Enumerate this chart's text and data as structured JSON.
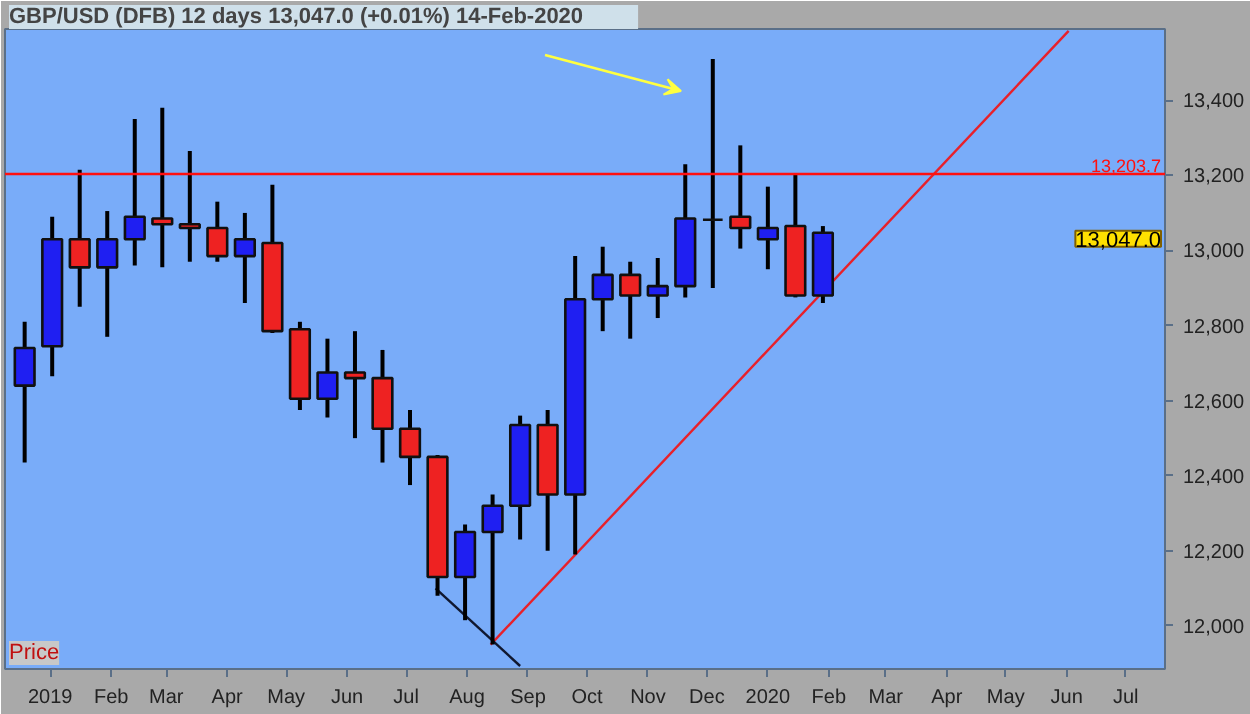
{
  "chart_data": {
    "type": "candlestick",
    "title": "GBP/USD (DFB)    12 days    13,047.0 (+0.01%)    14-Feb-2020",
    "x": [
      "2018-12-19",
      "2019-01-02",
      "2019-01-16",
      "2019-01-30",
      "2019-02-13",
      "2019-02-27",
      "2019-03-13",
      "2019-03-27",
      "2019-04-10",
      "2019-04-24",
      "2019-05-08",
      "2019-05-22",
      "2019-06-05",
      "2019-06-19",
      "2019-07-03",
      "2019-07-17",
      "2019-07-31",
      "2019-08-14",
      "2019-08-28",
      "2019-09-11",
      "2019-09-25",
      "2019-10-09",
      "2019-10-23",
      "2019-11-06",
      "2019-11-20",
      "2019-12-04",
      "2019-12-18",
      "2020-01-01",
      "2020-01-15",
      "2020-01-29"
    ],
    "ohlc": [
      [
        12640,
        12810,
        12435,
        12740
      ],
      [
        12745,
        13090,
        12665,
        13030
      ],
      [
        13030,
        13215,
        12850,
        12955
      ],
      [
        12955,
        13105,
        12770,
        13030
      ],
      [
        13030,
        13350,
        12960,
        13090
      ],
      [
        13085,
        13380,
        12955,
        13070
      ],
      [
        13070,
        13265,
        12970,
        13060
      ],
      [
        13060,
        13130,
        12970,
        12985
      ],
      [
        12985,
        13100,
        12860,
        13030
      ],
      [
        13020,
        13175,
        12780,
        12785
      ],
      [
        12790,
        12810,
        12575,
        12605
      ],
      [
        12605,
        12765,
        12555,
        12675
      ],
      [
        12675,
        12785,
        12500,
        12660
      ],
      [
        12660,
        12735,
        12435,
        12525
      ],
      [
        12525,
        12575,
        12375,
        12450
      ],
      [
        12450,
        12455,
        12080,
        12130
      ],
      [
        12130,
        12270,
        12015,
        12250
      ],
      [
        12250,
        12350,
        11950,
        12320
      ],
      [
        12320,
        12560,
        12230,
        12535
      ],
      [
        12535,
        12575,
        12200,
        12350
      ],
      [
        12350,
        12985,
        12190,
        12870
      ],
      [
        12870,
        13010,
        12785,
        12935
      ],
      [
        12935,
        12970,
        12765,
        12880
      ],
      [
        12880,
        12980,
        12820,
        12905
      ],
      [
        12905,
        13230,
        12875,
        13085
      ],
      [
        13082,
        13510,
        12900,
        13082
      ],
      [
        13090,
        13280,
        13005,
        13060
      ],
      [
        13030,
        13170,
        12950,
        13060
      ],
      [
        13065,
        13205,
        12875,
        12880
      ],
      [
        12880,
        13065,
        12860,
        13047
      ]
    ],
    "colors": [
      "#1f1ff2",
      "#1f1ff2",
      "#ee2222",
      "#1f1ff2",
      "#1f1ff2",
      "#ee2222",
      "#ee2222",
      "#ee2222",
      "#1f1ff2",
      "#ee2222",
      "#ee2222",
      "#1f1ff2",
      "#ee2222",
      "#ee2222",
      "#ee2222",
      "#ee2222",
      "#1f1ff2",
      "#1f1ff2",
      "#1f1ff2",
      "#ee2222",
      "#1f1ff2",
      "#1f1ff2",
      "#ee2222",
      "#1f1ff2",
      "#1f1ff2",
      "#000000",
      "#ee2222",
      "#1f1ff2",
      "#ee2222",
      "#1f1ff2"
    ],
    "series": [
      {
        "type": "line",
        "color": "#e8202a",
        "x": [
          "2019-08-13",
          "2020-06-02"
        ],
        "values": [
          11950,
          13585
        ]
      },
      {
        "type": "line",
        "color": "#101830",
        "x": [
          "2019-07-16",
          "2019-08-28"
        ],
        "values": [
          12100,
          11893
        ]
      }
    ],
    "ref_lines": [
      {
        "axis": "y",
        "value": 13203.7,
        "label": "13,203.7",
        "color": "#ff1010"
      }
    ],
    "annotations": [
      "Price",
      "13,047.0"
    ],
    "xlim": [
      "2018-12-09",
      "2020-07-21"
    ],
    "ylim": [
      11885,
      13590
    ],
    "xticks": [
      {
        "value": "2019-01-01",
        "label": "2019"
      },
      {
        "value": "2019-02-01",
        "label": "Feb"
      },
      {
        "value": "2019-03-01",
        "label": "Mar"
      },
      {
        "value": "2019-04-01",
        "label": "Apr"
      },
      {
        "value": "2019-05-01",
        "label": "May"
      },
      {
        "value": "2019-06-01",
        "label": "Jun"
      },
      {
        "value": "2019-07-01",
        "label": "Jul"
      },
      {
        "value": "2019-08-01",
        "label": "Aug"
      },
      {
        "value": "2019-09-01",
        "label": "Sep"
      },
      {
        "value": "2019-10-01",
        "label": "Oct"
      },
      {
        "value": "2019-11-01",
        "label": "Nov"
      },
      {
        "value": "2019-12-01",
        "label": "Dec"
      },
      {
        "value": "2020-01-01",
        "label": "2020"
      },
      {
        "value": "2020-02-01",
        "label": "Feb"
      },
      {
        "value": "2020-03-01",
        "label": "Mar"
      },
      {
        "value": "2020-04-01",
        "label": "Apr"
      },
      {
        "value": "2020-05-01",
        "label": "May"
      },
      {
        "value": "2020-06-01",
        "label": "Jun"
      },
      {
        "value": "2020-07-01",
        "label": "Jul"
      }
    ],
    "yticks": [
      {
        "value": 12000,
        "label": "12,000"
      },
      {
        "value": 12200,
        "label": "12,200"
      },
      {
        "value": 12400,
        "label": "12,400"
      },
      {
        "value": 12600,
        "label": "12,600"
      },
      {
        "value": 12800,
        "label": "12,800"
      },
      {
        "value": 13000,
        "label": "13,000"
      },
      {
        "value": 13200,
        "label": "13,200"
      },
      {
        "value": 13400,
        "label": "13,400"
      }
    ],
    "grid": false
  }
}
